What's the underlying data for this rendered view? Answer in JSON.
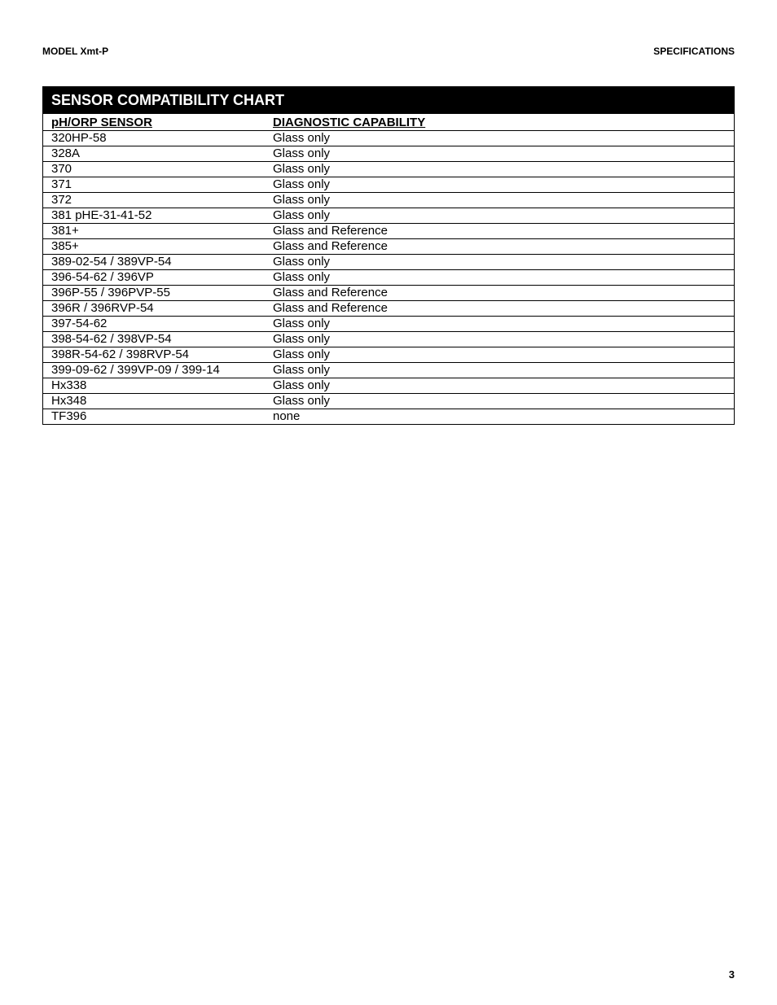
{
  "header": {
    "left": "MODEL Xmt-P",
    "right": "SPECIFICATIONS"
  },
  "chart": {
    "title": "SENSOR COMPATIBILITY CHART",
    "column_headers": {
      "sensor": "pH/ORP SENSOR",
      "diagnostic": "DIAGNOSTIC CAPABILITY"
    },
    "rows": [
      {
        "sensor": "320HP-58",
        "diagnostic": "Glass only"
      },
      {
        "sensor": "328A",
        "diagnostic": "Glass only"
      },
      {
        "sensor": "370",
        "diagnostic": "Glass only"
      },
      {
        "sensor": "371",
        "diagnostic": "Glass only"
      },
      {
        "sensor": "372",
        "diagnostic": "Glass only"
      },
      {
        "sensor": "381 pHE-31-41-52",
        "diagnostic": "Glass only"
      },
      {
        "sensor": "381+",
        "diagnostic": "Glass and Reference"
      },
      {
        "sensor": "385+",
        "diagnostic": "Glass and Reference"
      },
      {
        "sensor": "389-02-54 / 389VP-54",
        "diagnostic": "Glass only"
      },
      {
        "sensor": "396-54-62 / 396VP",
        "diagnostic": "Glass only"
      },
      {
        "sensor": "396P-55 / 396PVP-55",
        "diagnostic": "Glass and Reference"
      },
      {
        "sensor": "396R / 396RVP-54",
        "diagnostic": "Glass and Reference"
      },
      {
        "sensor": "397-54-62",
        "diagnostic": "Glass only"
      },
      {
        "sensor": "398-54-62 / 398VP-54",
        "diagnostic": "Glass only"
      },
      {
        "sensor": "398R-54-62 / 398RVP-54",
        "diagnostic": "Glass only"
      },
      {
        "sensor": "399-09-62 / 399VP-09 / 399-14",
        "diagnostic": "Glass only"
      },
      {
        "sensor": "Hx338",
        "diagnostic": "Glass only"
      },
      {
        "sensor": "Hx348",
        "diagnostic": "Glass only"
      },
      {
        "sensor": "TF396",
        "diagnostic": "none"
      }
    ]
  },
  "page_number": "3"
}
